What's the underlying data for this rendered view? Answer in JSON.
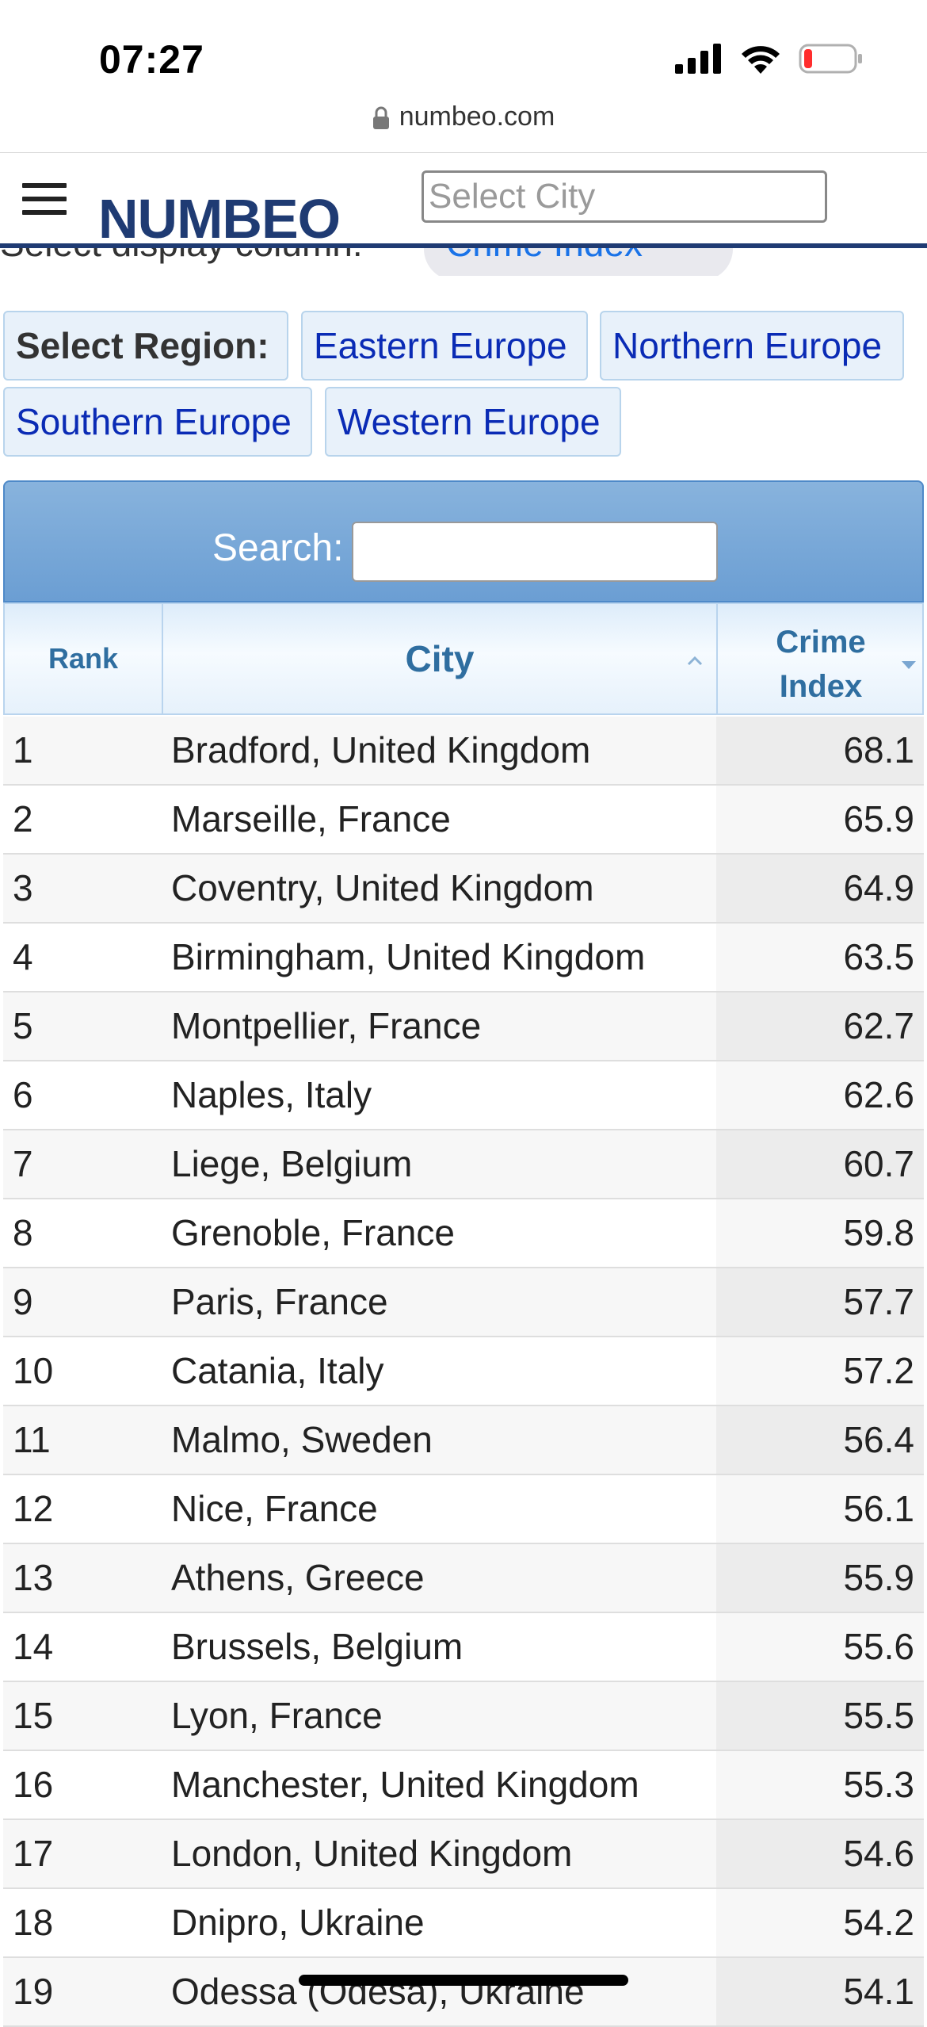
{
  "status_bar": {
    "time": "07:27",
    "icons": [
      "cellular-signal-icon",
      "wifi-icon",
      "battery-low-icon"
    ]
  },
  "browser": {
    "url": "numbeo.com"
  },
  "header": {
    "logo": "NUMBEO",
    "city_search_placeholder": "Select City"
  },
  "display_column": {
    "label": "Select display column:",
    "selected": "Crime Index"
  },
  "regions": {
    "label": "Select Region:",
    "items": [
      "Eastern Europe",
      "Northern Europe",
      "Southern Europe",
      "Western Europe"
    ]
  },
  "table": {
    "search_label": "Search:",
    "columns": {
      "rank": "Rank",
      "city": "City",
      "crime_line1": "Crime",
      "crime_line2": "Index"
    },
    "rows": [
      {
        "rank": "1",
        "city": "Bradford, United Kingdom",
        "crime": "68.1"
      },
      {
        "rank": "2",
        "city": "Marseille, France",
        "crime": "65.9"
      },
      {
        "rank": "3",
        "city": "Coventry, United Kingdom",
        "crime": "64.9"
      },
      {
        "rank": "4",
        "city": "Birmingham, United Kingdom",
        "crime": "63.5"
      },
      {
        "rank": "5",
        "city": "Montpellier, France",
        "crime": "62.7"
      },
      {
        "rank": "6",
        "city": "Naples, Italy",
        "crime": "62.6"
      },
      {
        "rank": "7",
        "city": "Liege, Belgium",
        "crime": "60.7"
      },
      {
        "rank": "8",
        "city": "Grenoble, France",
        "crime": "59.8"
      },
      {
        "rank": "9",
        "city": "Paris, France",
        "crime": "57.7"
      },
      {
        "rank": "10",
        "city": "Catania, Italy",
        "crime": "57.2"
      },
      {
        "rank": "11",
        "city": "Malmo, Sweden",
        "crime": "56.4"
      },
      {
        "rank": "12",
        "city": "Nice, France",
        "crime": "56.1"
      },
      {
        "rank": "13",
        "city": "Athens, Greece",
        "crime": "55.9"
      },
      {
        "rank": "14",
        "city": "Brussels, Belgium",
        "crime": "55.6"
      },
      {
        "rank": "15",
        "city": "Lyon, France",
        "crime": "55.5"
      },
      {
        "rank": "16",
        "city": "Manchester, United Kingdom",
        "crime": "55.3"
      },
      {
        "rank": "17",
        "city": "London, United Kingdom",
        "crime": "54.6"
      },
      {
        "rank": "18",
        "city": "Dnipro, Ukraine",
        "crime": "54.2"
      },
      {
        "rank": "19",
        "city": "Odessa (Odesa), Ukraine",
        "crime": "54.1"
      }
    ]
  }
}
